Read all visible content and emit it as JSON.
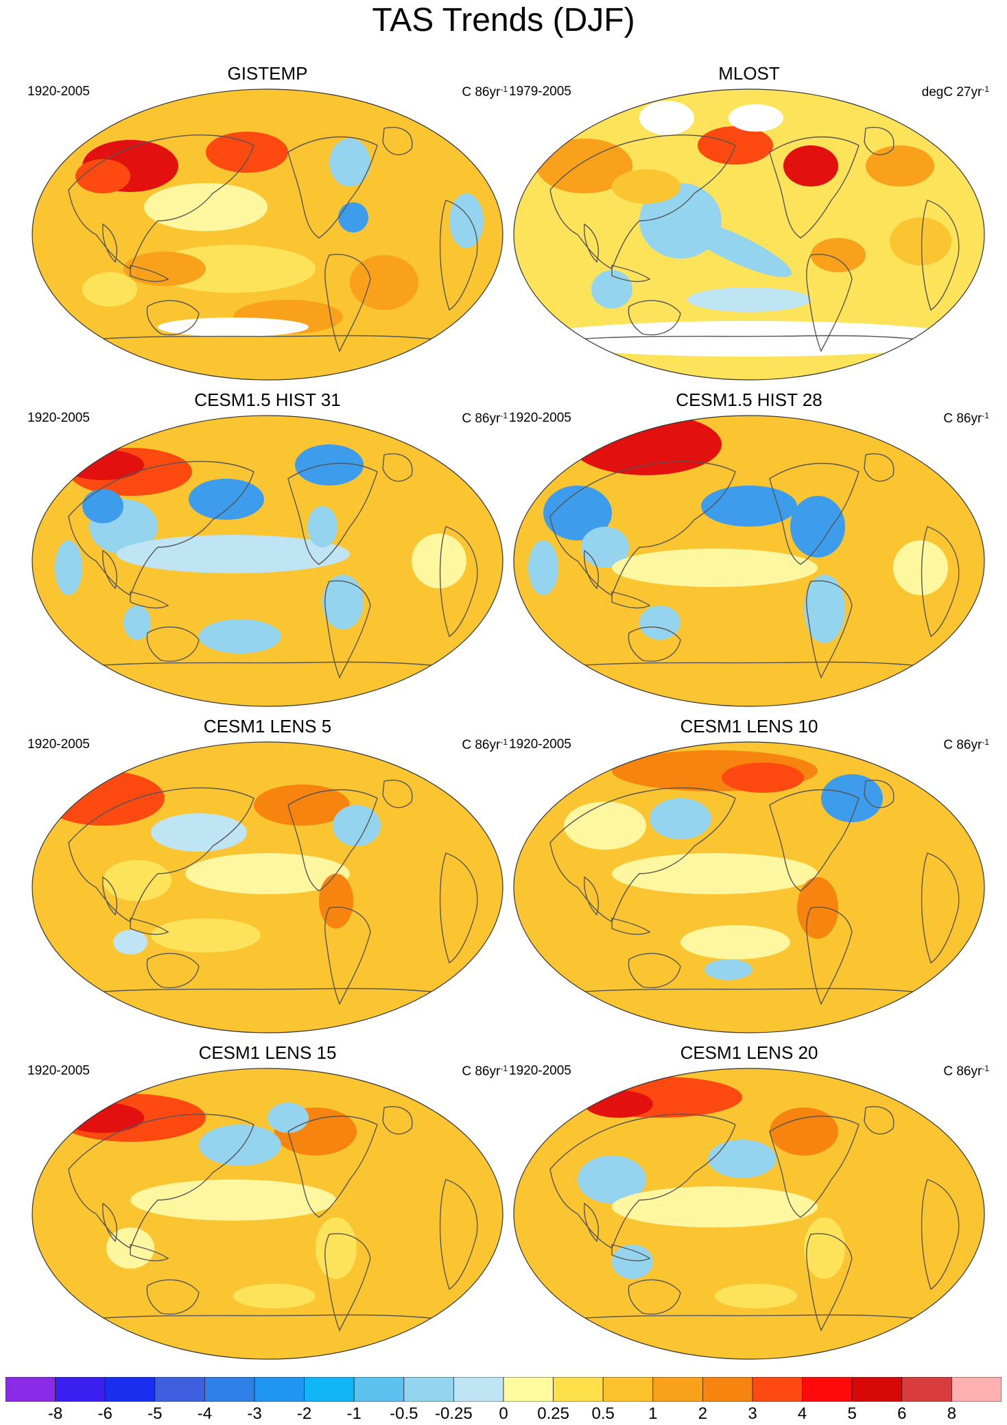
{
  "title": "TAS Trends (DJF)",
  "panels": [
    {
      "title": "GISTEMP",
      "period": "1920-2005",
      "units": "C 86yr",
      "units_exp": "-1",
      "scheme": "gistemp"
    },
    {
      "title": "MLOST",
      "period": "1979-2005",
      "units": "degC 27yr",
      "units_exp": "-1",
      "scheme": "mlost"
    },
    {
      "title": "CESM1.5 HIST 31",
      "period": "1920-2005",
      "units": "C 86yr",
      "units_exp": "-1",
      "scheme": "hist31"
    },
    {
      "title": "CESM1.5 HIST 28",
      "period": "1920-2005",
      "units": "C 86yr",
      "units_exp": "-1",
      "scheme": "hist28"
    },
    {
      "title": "CESM1 LENS 5",
      "period": "1920-2005",
      "units": "C 86yr",
      "units_exp": "-1",
      "scheme": "lens5"
    },
    {
      "title": "CESM1 LENS 10",
      "period": "1920-2005",
      "units": "C 86yr",
      "units_exp": "-1",
      "scheme": "lens10"
    },
    {
      "title": "CESM1 LENS 15",
      "period": "1920-2005",
      "units": "C 86yr",
      "units_exp": "-1",
      "scheme": "lens15"
    },
    {
      "title": "CESM1 LENS 20",
      "period": "1920-2005",
      "units": "C 86yr",
      "units_exp": "-1",
      "scheme": "lens20"
    }
  ],
  "colorbar": {
    "labels": [
      "-8",
      "-6",
      "-5",
      "-4",
      "-3",
      "-2",
      "-1",
      "-0.5",
      "-0.25",
      "0",
      "0.25",
      "0.5",
      "1",
      "2",
      "3",
      "4",
      "5",
      "6",
      "8"
    ],
    "colors": [
      "#8a2be8",
      "#3a1ff0",
      "#1a2ef0",
      "#3e5fe0",
      "#2f7fe8",
      "#1e96f2",
      "#10b6f5",
      "#5ec2f0",
      "#94d4ef",
      "#bfe4f4",
      "#fffaa0",
      "#ffe04a",
      "#fcc22c",
      "#f9a11a",
      "#f7840e",
      "#fe4a10",
      "#fe0a0a",
      "#d80808",
      "#d93c3c",
      "#ffb0b0"
    ]
  },
  "palette": {
    "pale_yellow": "#fff6a0",
    "yellow": "#fde35a",
    "light_orange": "#fbc531",
    "orange": "#f9a11a",
    "dark_orange": "#f7840e",
    "red_orange": "#fe4a10",
    "red": "#e31010",
    "pale_blue": "#bfe4f4",
    "light_blue": "#94d4ef",
    "blue": "#3d9cec",
    "deep_blue": "#3e5fe0",
    "missing": "#ffffff",
    "coastline": "#555555"
  }
}
